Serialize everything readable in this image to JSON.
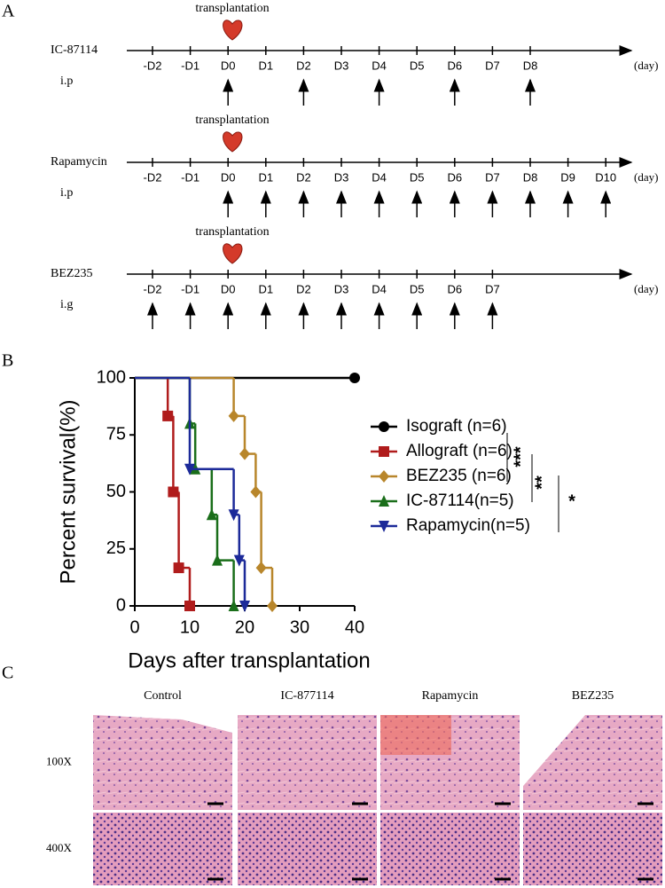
{
  "panels": {
    "a": "A",
    "b": "B",
    "c": "C"
  },
  "timelines": [
    {
      "event": "transplantation",
      "drug": "IC-87114",
      "route": "i.p",
      "unit": "(day)",
      "days": [
        "-D2",
        "-D1",
        "D0",
        "D1",
        "D2",
        "D3",
        "D4",
        "D5",
        "D6",
        "D7",
        "D8"
      ],
      "dosed": [
        false,
        false,
        true,
        false,
        true,
        false,
        true,
        false,
        true,
        false,
        true
      ]
    },
    {
      "event": "transplantation",
      "drug": "Rapamycin",
      "route": "i.p",
      "unit": "(day)",
      "days": [
        "-D2",
        "-D1",
        "D0",
        "D1",
        "D2",
        "D3",
        "D4",
        "D5",
        "D6",
        "D7",
        "D8",
        "D9",
        "D10"
      ],
      "dosed": [
        false,
        false,
        true,
        true,
        true,
        true,
        true,
        true,
        true,
        true,
        true,
        true,
        true
      ]
    },
    {
      "event": "transplantation",
      "drug": "BEZ235",
      "route": "i.g",
      "unit": "(day)",
      "days": [
        "-D2",
        "-D1",
        "D0",
        "D1",
        "D2",
        "D3",
        "D4",
        "D5",
        "D6",
        "D7"
      ],
      "dosed": [
        true,
        true,
        true,
        true,
        true,
        true,
        true,
        true,
        true,
        true
      ]
    }
  ],
  "chart_data": {
    "type": "step",
    "x_label": "Days after transplantation",
    "y_label": "Percent survival(%)",
    "xlim": [
      0,
      40
    ],
    "xticks": [
      0,
      10,
      20,
      30,
      40
    ],
    "ylim": [
      0,
      100
    ],
    "yticks": [
      0,
      25,
      50,
      75,
      100
    ],
    "series": [
      {
        "name": "Isograft (n=6)",
        "color": "#000000",
        "marker": "circle",
        "x": [
          0,
          40
        ],
        "values": [
          100,
          100
        ]
      },
      {
        "name": "Allograft (n=6)",
        "color": "#b01c1c",
        "marker": "square",
        "x": [
          0,
          6,
          7,
          8,
          10
        ],
        "values": [
          100,
          83.3,
          50,
          16.7,
          0
        ]
      },
      {
        "name": "BEZ235 (n=6)",
        "color": "#b8862b",
        "marker": "diamond",
        "x": [
          0,
          18,
          20,
          22,
          23,
          25
        ],
        "values": [
          100,
          83.3,
          66.7,
          50,
          16.7,
          0
        ]
      },
      {
        "name": "IC-87114(n=5)",
        "color": "#1a6e1a",
        "marker": "triangle",
        "x": [
          0,
          10,
          11,
          14,
          15,
          18
        ],
        "values": [
          100,
          80,
          60,
          40,
          20,
          0
        ]
      },
      {
        "name": "Rapamycin(n=5)",
        "color": "#1c2a99",
        "marker": "triangle-down",
        "x": [
          0,
          10,
          18,
          19,
          20
        ],
        "values": [
          100,
          60,
          40,
          20,
          0
        ]
      }
    ],
    "annotations": [
      "***",
      "**",
      "*"
    ]
  },
  "histology": {
    "columns": [
      "Control",
      "IC-877114",
      "Rapamycin",
      "BEZ235"
    ],
    "rows": [
      "100X",
      "400X"
    ]
  }
}
